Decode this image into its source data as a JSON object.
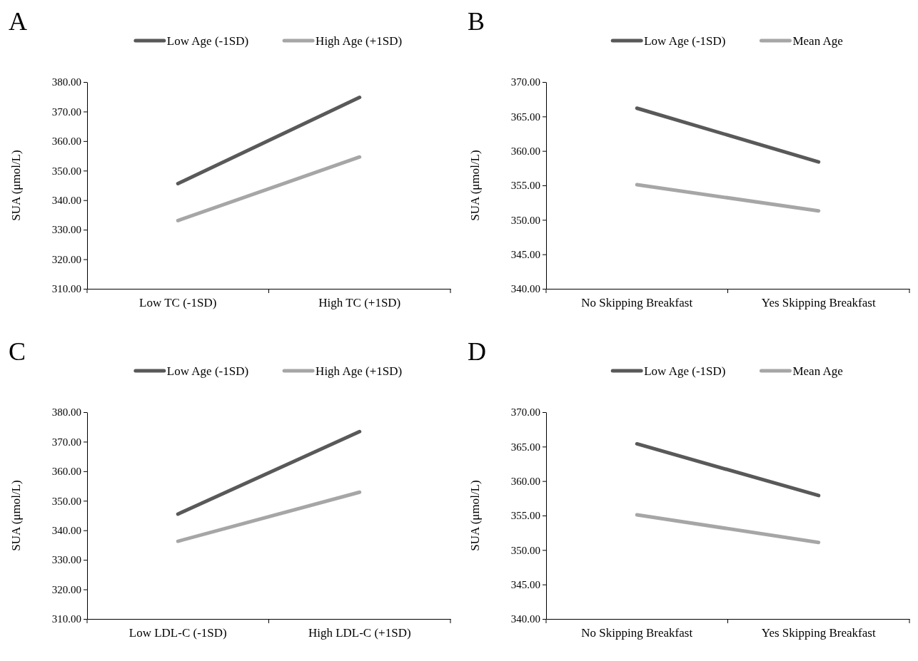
{
  "chart_data": [
    {
      "type": "line",
      "title": "A",
      "ylabel": "SUA (μmol/L)",
      "categories": [
        "Low TC (-1SD)",
        "High TC (+1SD)"
      ],
      "legend": "top",
      "marker": "none",
      "line_style": "solid",
      "grid": false,
      "ylim": [
        310,
        380
      ],
      "yticks": [
        {
          "value": 310,
          "label": "310.00"
        },
        {
          "value": 320,
          "label": "320.00"
        },
        {
          "value": 330,
          "label": "330.00"
        },
        {
          "value": 340,
          "label": "340.00"
        },
        {
          "value": 350,
          "label": "350.00"
        },
        {
          "value": 360,
          "label": "360.00"
        },
        {
          "value": 370,
          "label": "370.00"
        },
        {
          "value": 380,
          "label": "380.00"
        }
      ],
      "series": [
        {
          "name": "Low Age (-1SD)",
          "color": "#595959",
          "values": [
            345.6,
            374.8
          ]
        },
        {
          "name": "High Age (+1SD)",
          "color": "#a6a6a6",
          "values": [
            333.1,
            354.6
          ]
        }
      ]
    },
    {
      "type": "line",
      "title": "B",
      "ylabel": "SUA (μmol/L)",
      "categories": [
        "No Skipping Breakfast",
        "Yes Skipping Breakfast"
      ],
      "legend": "top",
      "marker": "none",
      "line_style": "solid",
      "grid": false,
      "ylim": [
        340,
        370
      ],
      "yticks": [
        {
          "value": 340,
          "label": "340.00"
        },
        {
          "value": 345,
          "label": "345.00"
        },
        {
          "value": 350,
          "label": "350.00"
        },
        {
          "value": 355,
          "label": "355.00"
        },
        {
          "value": 360,
          "label": "360.00"
        },
        {
          "value": 365,
          "label": "365.00"
        },
        {
          "value": 370,
          "label": "370.00"
        }
      ],
      "series": [
        {
          "name": "Low Age (-1SD)",
          "color": "#595959",
          "values": [
            366.2,
            358.4
          ]
        },
        {
          "name": "Mean Age",
          "color": "#a6a6a6",
          "values": [
            355.1,
            351.3
          ]
        }
      ]
    },
    {
      "type": "line",
      "title": "C",
      "ylabel": "SUA (μmol/L)",
      "categories": [
        "Low LDL-C (-1SD)",
        "High LDL-C (+1SD)"
      ],
      "legend": "top",
      "marker": "none",
      "line_style": "solid",
      "grid": false,
      "ylim": [
        310,
        380
      ],
      "yticks": [
        {
          "value": 310,
          "label": "310.00"
        },
        {
          "value": 320,
          "label": "320.00"
        },
        {
          "value": 330,
          "label": "330.00"
        },
        {
          "value": 340,
          "label": "340.00"
        },
        {
          "value": 350,
          "label": "350.00"
        },
        {
          "value": 360,
          "label": "360.00"
        },
        {
          "value": 370,
          "label": "370.00"
        },
        {
          "value": 380,
          "label": "380.00"
        }
      ],
      "series": [
        {
          "name": "Low Age (-1SD)",
          "color": "#595959",
          "values": [
            345.5,
            373.4
          ]
        },
        {
          "name": "High Age (+1SD)",
          "color": "#a6a6a6",
          "values": [
            336.3,
            352.9
          ]
        }
      ]
    },
    {
      "type": "line",
      "title": "D",
      "ylabel": "SUA (μmol/L)",
      "categories": [
        "No Skipping Breakfast",
        "Yes Skipping Breakfast"
      ],
      "legend": "top",
      "marker": "none",
      "line_style": "solid",
      "grid": false,
      "ylim": [
        340,
        370
      ],
      "yticks": [
        {
          "value": 340,
          "label": "340.00"
        },
        {
          "value": 345,
          "label": "345.00"
        },
        {
          "value": 350,
          "label": "350.00"
        },
        {
          "value": 355,
          "label": "355.00"
        },
        {
          "value": 360,
          "label": "360.00"
        },
        {
          "value": 365,
          "label": "365.00"
        },
        {
          "value": 370,
          "label": "370.00"
        }
      ],
      "series": [
        {
          "name": "Low Age (-1SD)",
          "color": "#595959",
          "values": [
            365.4,
            357.9
          ]
        },
        {
          "name": "Mean Age",
          "color": "#a6a6a6",
          "values": [
            355.1,
            351.1
          ]
        }
      ]
    }
  ]
}
